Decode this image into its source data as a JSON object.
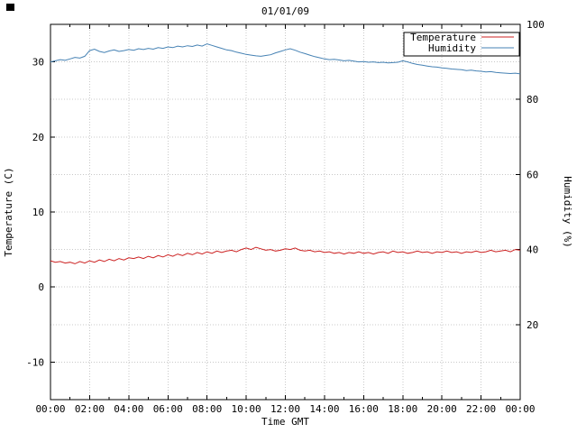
{
  "page": {
    "background": "#ffffff"
  },
  "chart_data": {
    "type": "line",
    "title": "01/01/09",
    "xlabel": "Time GMT",
    "ylabel_left": "Temperature (C)",
    "ylabel_right": "Humidity (%)",
    "grid": true,
    "legend": {
      "position": "top-right",
      "box": true
    },
    "x_range_hours": [
      0,
      24
    ],
    "x_tick_hours": [
      0,
      2,
      4,
      6,
      8,
      10,
      12,
      14,
      16,
      18,
      20,
      22,
      24
    ],
    "x_tick_labels": [
      "00:00",
      "02:00",
      "04:00",
      "06:00",
      "08:00",
      "10:00",
      "12:00",
      "14:00",
      "16:00",
      "18:00",
      "20:00",
      "22:00",
      "00:00"
    ],
    "y_left": {
      "label": "Temperature (C)",
      "range": [
        -15,
        35
      ],
      "ticks": [
        -10,
        0,
        10,
        20,
        30
      ]
    },
    "y_right": {
      "label": "Humidity (%)",
      "range": [
        0,
        100
      ],
      "ticks": [
        20,
        40,
        60,
        80,
        100
      ]
    },
    "x": [
      0,
      0.25,
      0.5,
      0.75,
      1,
      1.25,
      1.5,
      1.75,
      2,
      2.25,
      2.5,
      2.75,
      3,
      3.25,
      3.5,
      3.75,
      4,
      4.25,
      4.5,
      4.75,
      5,
      5.25,
      5.5,
      5.75,
      6,
      6.25,
      6.5,
      6.75,
      7,
      7.25,
      7.5,
      7.75,
      8,
      8.25,
      8.5,
      8.75,
      9,
      9.25,
      9.5,
      9.75,
      10,
      10.25,
      10.5,
      10.75,
      11,
      11.25,
      11.5,
      11.75,
      12,
      12.25,
      12.5,
      12.75,
      13,
      13.25,
      13.5,
      13.75,
      14,
      14.25,
      14.5,
      14.75,
      15,
      15.25,
      15.5,
      15.75,
      16,
      16.25,
      16.5,
      16.75,
      17,
      17.25,
      17.5,
      17.75,
      18,
      18.25,
      18.5,
      18.75,
      19,
      19.25,
      19.5,
      19.75,
      20,
      20.25,
      20.5,
      20.75,
      21,
      21.25,
      21.5,
      21.75,
      22,
      22.25,
      22.5,
      22.75,
      23,
      23.25,
      23.5,
      23.75,
      24
    ],
    "series": [
      {
        "name": "Temperature",
        "axis": "left",
        "color": "#cc2222",
        "values": [
          3.5,
          3.3,
          3.4,
          3.2,
          3.3,
          3.1,
          3.4,
          3.2,
          3.5,
          3.3,
          3.6,
          3.4,
          3.7,
          3.5,
          3.8,
          3.6,
          3.9,
          3.8,
          4.0,
          3.8,
          4.1,
          3.9,
          4.2,
          4.0,
          4.3,
          4.1,
          4.4,
          4.2,
          4.5,
          4.3,
          4.6,
          4.4,
          4.7,
          4.5,
          4.8,
          4.6,
          4.8,
          4.9,
          4.7,
          5.0,
          5.2,
          5.0,
          5.3,
          5.1,
          4.9,
          5.0,
          4.8,
          4.9,
          5.1,
          5.0,
          5.2,
          4.9,
          4.8,
          4.9,
          4.7,
          4.8,
          4.6,
          4.7,
          4.5,
          4.6,
          4.4,
          4.6,
          4.5,
          4.7,
          4.5,
          4.6,
          4.4,
          4.6,
          4.7,
          4.5,
          4.8,
          4.6,
          4.7,
          4.5,
          4.6,
          4.8,
          4.6,
          4.7,
          4.5,
          4.7,
          4.6,
          4.8,
          4.6,
          4.7,
          4.5,
          4.7,
          4.6,
          4.8,
          4.6,
          4.7,
          4.9,
          4.7,
          4.8,
          4.9,
          4.7,
          5.0,
          4.9
        ]
      },
      {
        "name": "Humidity",
        "axis": "right",
        "color": "#4682b4",
        "values": [
          90.0,
          90.3,
          90.6,
          90.4,
          90.8,
          91.2,
          91.0,
          91.5,
          93.0,
          93.4,
          92.8,
          92.5,
          92.9,
          93.2,
          92.8,
          93.0,
          93.3,
          93.1,
          93.5,
          93.3,
          93.6,
          93.4,
          93.8,
          93.6,
          94.0,
          93.8,
          94.2,
          94.0,
          94.3,
          94.1,
          94.5,
          94.2,
          94.8,
          94.4,
          94.0,
          93.6,
          93.2,
          93.0,
          92.6,
          92.3,
          92.0,
          91.8,
          91.6,
          91.5,
          91.7,
          91.9,
          92.4,
          92.8,
          93.2,
          93.5,
          93.1,
          92.6,
          92.2,
          91.8,
          91.4,
          91.1,
          90.8,
          90.6,
          90.7,
          90.5,
          90.3,
          90.4,
          90.2,
          90.0,
          90.1,
          89.9,
          90.0,
          89.8,
          89.9,
          89.7,
          89.8,
          89.9,
          90.3,
          90.0,
          89.6,
          89.3,
          89.1,
          88.9,
          88.7,
          88.6,
          88.4,
          88.3,
          88.1,
          88.0,
          87.9,
          87.7,
          87.8,
          87.6,
          87.5,
          87.3,
          87.4,
          87.2,
          87.1,
          87.0,
          86.9,
          87.0,
          86.8
        ]
      }
    ]
  }
}
